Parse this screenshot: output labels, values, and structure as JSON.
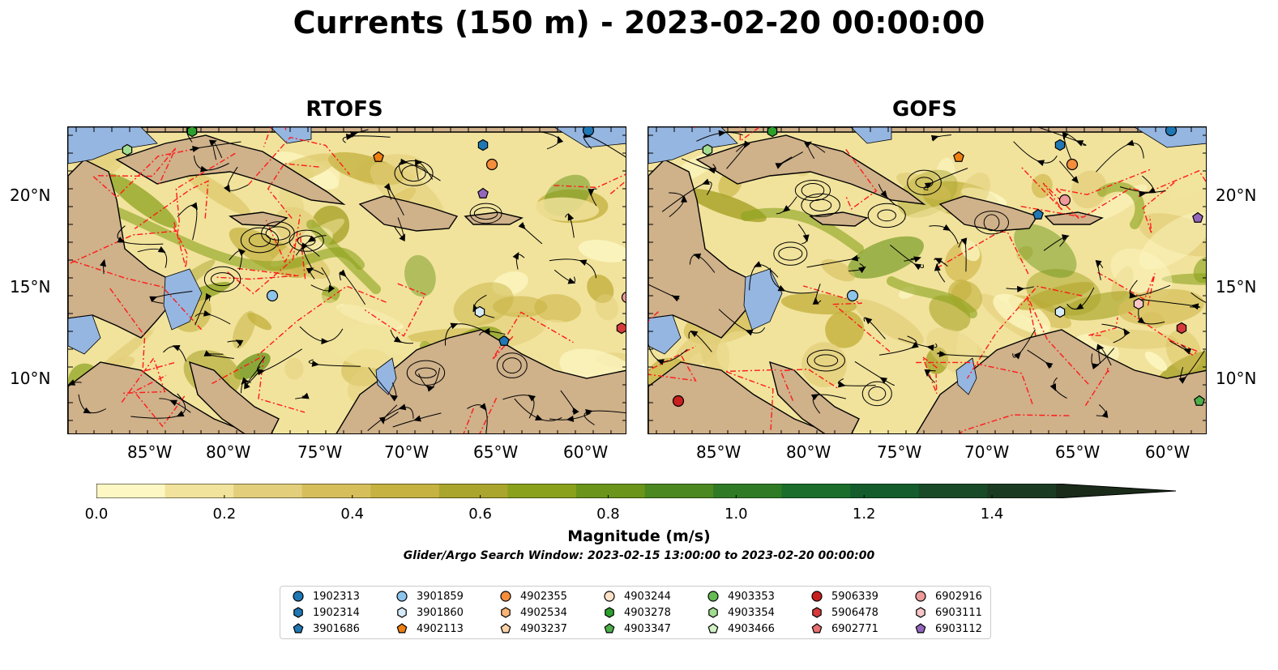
{
  "title": "Currents (150 m) - 2023-02-20 00:00:00",
  "panels": [
    {
      "title": "RTOFS"
    },
    {
      "title": "GOFS"
    }
  ],
  "lon_ticks": [
    "85°W",
    "80°W",
    "75°W",
    "70°W",
    "65°W",
    "60°W"
  ],
  "lat_ticks": [
    "20°N",
    "15°N",
    "10°N"
  ],
  "colorbar": {
    "label": "Magnitude (m/s)",
    "ticks": [
      "0.0",
      "0.2",
      "0.4",
      "0.6",
      "0.8",
      "1.0",
      "1.2",
      "1.4"
    ],
    "range": [
      0,
      1.5
    ],
    "colors": [
      "#fdf7c3",
      "#f1e39c",
      "#e3cf7b",
      "#d6bf5b",
      "#c5b241",
      "#aaa52c",
      "#8aa11c",
      "#6a951a",
      "#4b881f",
      "#2f7b25",
      "#1a6d2b",
      "#145c2b",
      "#184a27",
      "#1b3a22",
      "#1a2b1a"
    ],
    "extend": "max"
  },
  "search_window": "Glider/Argo Search Window: 2023-02-15 13:00:00 to 2023-02-20 00:00:00",
  "legend": {
    "columns": [
      [
        {
          "label": "1902313",
          "marker": "circle",
          "color": "#1f77b4"
        },
        {
          "label": "1902314",
          "marker": "hexagon",
          "color": "#1f77b4"
        },
        {
          "label": "3901686",
          "marker": "pentagon",
          "color": "#1f77b4"
        }
      ],
      [
        {
          "label": "3901859",
          "marker": "circle",
          "color": "#8ec4ea"
        },
        {
          "label": "3901860",
          "marker": "hexagon",
          "color": "#d6ebf8"
        },
        {
          "label": "4902113",
          "marker": "pentagon",
          "color": "#f07f12"
        }
      ],
      [
        {
          "label": "4902355",
          "marker": "circle",
          "color": "#f58e3c"
        },
        {
          "label": "4902534",
          "marker": "hexagon",
          "color": "#fbb475"
        },
        {
          "label": "4903237",
          "marker": "pentagon",
          "color": "#fcd2a8"
        }
      ],
      [
        {
          "label": "4903244",
          "marker": "circle",
          "color": "#fde2c8"
        },
        {
          "label": "4903278",
          "marker": "hexagon",
          "color": "#2ca02c"
        },
        {
          "label": "4903347",
          "marker": "pentagon",
          "color": "#4daf4a"
        }
      ],
      [
        {
          "label": "4903353",
          "marker": "circle",
          "color": "#66bb55"
        },
        {
          "label": "4903354",
          "marker": "hexagon",
          "color": "#a1dc8f"
        },
        {
          "label": "4903466",
          "marker": "pentagon",
          "color": "#d2f2c4"
        }
      ],
      [
        {
          "label": "5906339",
          "marker": "circle",
          "color": "#c91f1f"
        },
        {
          "label": "5906478",
          "marker": "hexagon",
          "color": "#d63a3a"
        },
        {
          "label": "6902771",
          "marker": "pentagon",
          "color": "#e87070"
        }
      ],
      [
        {
          "label": "6902916",
          "marker": "circle",
          "color": "#ee9a9a"
        },
        {
          "label": "6903111",
          "marker": "hexagon",
          "color": "#f8c6c6"
        },
        {
          "label": "6903112",
          "marker": "pentagon",
          "color": "#9467bd"
        }
      ]
    ]
  }
}
